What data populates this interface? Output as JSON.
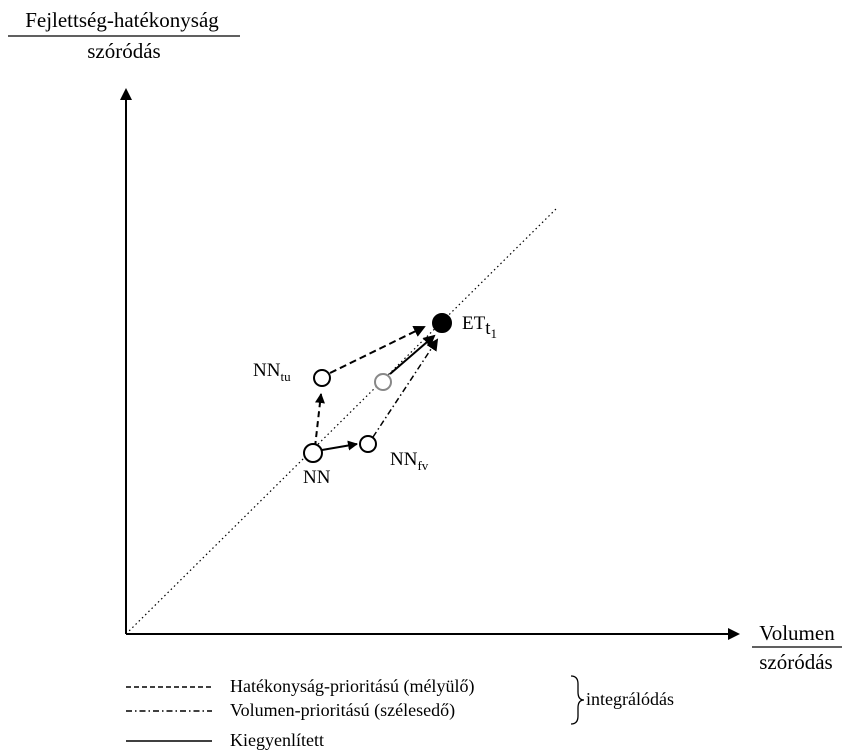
{
  "y_axis": {
    "numerator": "Fejlettség-hatékonyság",
    "denominator": "szóródás"
  },
  "x_axis": {
    "numerator": "Volumen",
    "denominator": "szóródás"
  },
  "nodes": {
    "nn": {
      "label": "NN"
    },
    "nn_tu": {
      "label": "NN",
      "subscript": "tu"
    },
    "nn_fv": {
      "label": "NN",
      "subscript": "fv"
    },
    "et": {
      "label": "ET",
      "subscript": "t",
      "sub_subscript": "1"
    }
  },
  "legend": {
    "dashed_label": "Hatékonyság-prioritású (mélyülő)",
    "dashdot_label": "Volumen-prioritású (szélesedő)",
    "solid_label": "Kiegyenlített",
    "group_label": "integrálódás"
  },
  "colors": {
    "ink": "#000000",
    "paper": "#ffffff",
    "ghost_node": "#888888"
  }
}
